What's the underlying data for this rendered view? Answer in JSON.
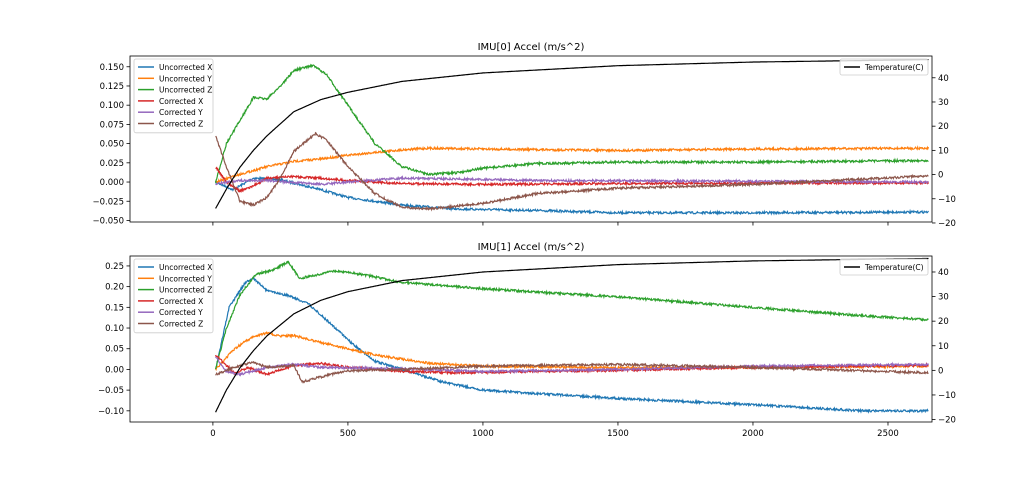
{
  "chart_data": [
    {
      "type": "line",
      "title": "IMU[0] Accel (m/s^2)",
      "xlabel": "",
      "ylabel": "",
      "y2label": "",
      "xlim": [
        -307,
        2663
      ],
      "ylim": [
        -0.052,
        0.164
      ],
      "y2lim": [
        -19.6,
        49
      ],
      "xticks": [
        0,
        500,
        1000,
        1500,
        2000,
        2500
      ],
      "show_xtick_labels": false,
      "yticks": [
        "-0.050",
        "-0.025",
        "0.000",
        "0.025",
        "0.050",
        "0.075",
        "0.100",
        "0.125",
        "0.150"
      ],
      "y2ticks": [
        "-20",
        "-10",
        "0",
        "10",
        "20",
        "30",
        "40"
      ],
      "grid": false,
      "legend_placement": "top-left",
      "legend2_placement": "top-right",
      "series": [
        {
          "name": "Uncorrected X",
          "color": "#1f77b4",
          "points": [
            [
              10,
              0
            ],
            [
              75,
              -0.01
            ],
            [
              150,
              0.005
            ],
            [
              250,
              0.003
            ],
            [
              400,
              -0.01
            ],
            [
              500,
              -0.02
            ],
            [
              700,
              -0.03
            ],
            [
              900,
              -0.035
            ],
            [
              1200,
              -0.037
            ],
            [
              1500,
              -0.04
            ],
            [
              2000,
              -0.04
            ],
            [
              2650,
              -0.039
            ]
          ]
        },
        {
          "name": "Uncorrected Y",
          "color": "#ff7f0e",
          "points": [
            [
              10,
              0
            ],
            [
              100,
              0.01
            ],
            [
              200,
              0.02
            ],
            [
              300,
              0.027
            ],
            [
              400,
              0.03
            ],
            [
              500,
              0.035
            ],
            [
              700,
              0.042
            ],
            [
              800,
              0.044
            ],
            [
              1000,
              0.043
            ],
            [
              1500,
              0.041
            ],
            [
              2000,
              0.043
            ],
            [
              2650,
              0.044
            ]
          ]
        },
        {
          "name": "Uncorrected Z",
          "color": "#2ca02c",
          "points": [
            [
              10,
              0
            ],
            [
              50,
              0.05
            ],
            [
              100,
              0.08
            ],
            [
              150,
              0.11
            ],
            [
              200,
              0.108
            ],
            [
              250,
              0.125
            ],
            [
              300,
              0.145
            ],
            [
              370,
              0.152
            ],
            [
              420,
              0.14
            ],
            [
              500,
              0.1
            ],
            [
              600,
              0.05
            ],
            [
              700,
              0.02
            ],
            [
              800,
              0.01
            ],
            [
              900,
              0.012
            ],
            [
              1000,
              0.018
            ],
            [
              1200,
              0.024
            ],
            [
              1500,
              0.026
            ],
            [
              2000,
              0.026
            ],
            [
              2650,
              0.028
            ]
          ]
        },
        {
          "name": "Corrected X",
          "color": "#d62728",
          "points": [
            [
              10,
              0.02
            ],
            [
              50,
              0
            ],
            [
              100,
              -0.012
            ],
            [
              150,
              -0.005
            ],
            [
              200,
              0.005
            ],
            [
              300,
              0.007
            ],
            [
              400,
              0.005
            ],
            [
              500,
              0.002
            ],
            [
              700,
              -0.002
            ],
            [
              1000,
              -0.003
            ],
            [
              1500,
              -0.002
            ],
            [
              2650,
              -0.001
            ]
          ]
        },
        {
          "name": "Corrected Y",
          "color": "#9467bd",
          "points": [
            [
              10,
              -0.002
            ],
            [
              100,
              0.002
            ],
            [
              200,
              0.002
            ],
            [
              400,
              -0.003
            ],
            [
              500,
              0
            ],
            [
              700,
              0.005
            ],
            [
              900,
              0.004
            ],
            [
              1200,
              0.002
            ],
            [
              2000,
              0.001
            ],
            [
              2650,
              0
            ]
          ]
        },
        {
          "name": "Corrected Z",
          "color": "#8c564b",
          "points": [
            [
              10,
              0.06
            ],
            [
              50,
              0.02
            ],
            [
              100,
              -0.025
            ],
            [
              150,
              -0.03
            ],
            [
              200,
              -0.02
            ],
            [
              250,
              0.005
            ],
            [
              300,
              0.04
            ],
            [
              380,
              0.063
            ],
            [
              420,
              0.055
            ],
            [
              500,
              0.02
            ],
            [
              600,
              -0.015
            ],
            [
              700,
              -0.033
            ],
            [
              800,
              -0.035
            ],
            [
              1000,
              -0.028
            ],
            [
              1200,
              -0.015
            ],
            [
              1500,
              -0.008
            ],
            [
              2000,
              -0.003
            ],
            [
              2650,
              0.008
            ]
          ]
        }
      ],
      "series2": [
        {
          "name": "Temperature(C)",
          "color": "#000000",
          "points": [
            [
              10,
              -14
            ],
            [
              50,
              -6
            ],
            [
              100,
              3
            ],
            [
              150,
              10
            ],
            [
              200,
              16
            ],
            [
              300,
              26
            ],
            [
              400,
              31
            ],
            [
              500,
              34
            ],
            [
              700,
              38.5
            ],
            [
              1000,
              42
            ],
            [
              1500,
              45
            ],
            [
              2000,
              46.5
            ],
            [
              2650,
              47.5
            ]
          ]
        }
      ]
    },
    {
      "type": "line",
      "title": "IMU[1] Accel (m/s^2)",
      "xlabel": "",
      "ylabel": "",
      "y2label": "",
      "xlim": [
        -307,
        2663
      ],
      "ylim": [
        -0.127,
        0.274
      ],
      "y2lim": [
        -21,
        46.5
      ],
      "xticks": [
        0,
        500,
        1000,
        1500,
        2000,
        2500
      ],
      "show_xtick_labels": true,
      "yticks": [
        "-0.10",
        "-0.05",
        "0.00",
        "0.05",
        "0.10",
        "0.15",
        "0.20",
        "0.25"
      ],
      "y2ticks": [
        "-20",
        "-10",
        "0",
        "10",
        "20",
        "30",
        "40"
      ],
      "grid": false,
      "legend_placement": "top-left",
      "legend2_placement": "top-right",
      "series": [
        {
          "name": "Uncorrected X",
          "color": "#1f77b4",
          "points": [
            [
              10,
              0
            ],
            [
              60,
              0.15
            ],
            [
              120,
              0.21
            ],
            [
              150,
              0.22
            ],
            [
              200,
              0.19
            ],
            [
              280,
              0.178
            ],
            [
              350,
              0.16
            ],
            [
              420,
              0.12
            ],
            [
              520,
              0.06
            ],
            [
              600,
              0.02
            ],
            [
              700,
              0
            ],
            [
              850,
              -0.03
            ],
            [
              1000,
              -0.05
            ],
            [
              1500,
              -0.07
            ],
            [
              2000,
              -0.085
            ],
            [
              2400,
              -0.1
            ],
            [
              2650,
              -0.1
            ]
          ]
        },
        {
          "name": "Uncorrected Y",
          "color": "#ff7f0e",
          "points": [
            [
              10,
              0
            ],
            [
              80,
              0.05
            ],
            [
              150,
              0.08
            ],
            [
              200,
              0.088
            ],
            [
              250,
              0.08
            ],
            [
              300,
              0.082
            ],
            [
              400,
              0.065
            ],
            [
              500,
              0.05
            ],
            [
              600,
              0.035
            ],
            [
              700,
              0.025
            ],
            [
              800,
              0.015
            ],
            [
              1000,
              0.008
            ],
            [
              1500,
              0.004
            ],
            [
              2000,
              0.005
            ],
            [
              2650,
              0.008
            ]
          ]
        },
        {
          "name": "Uncorrected Z",
          "color": "#2ca02c",
          "points": [
            [
              10,
              0
            ],
            [
              50,
              0.1
            ],
            [
              100,
              0.18
            ],
            [
              160,
              0.23
            ],
            [
              220,
              0.24
            ],
            [
              280,
              0.26
            ],
            [
              320,
              0.22
            ],
            [
              400,
              0.23
            ],
            [
              450,
              0.238
            ],
            [
              550,
              0.23
            ],
            [
              700,
              0.21
            ],
            [
              1000,
              0.195
            ],
            [
              1500,
              0.175
            ],
            [
              2000,
              0.15
            ],
            [
              2400,
              0.13
            ],
            [
              2650,
              0.12
            ]
          ]
        },
        {
          "name": "Corrected X",
          "color": "#d62728",
          "points": [
            [
              10,
              0.035
            ],
            [
              50,
              0.01
            ],
            [
              80,
              -0.01
            ],
            [
              130,
              0.005
            ],
            [
              200,
              -0.012
            ],
            [
              300,
              0.01
            ],
            [
              400,
              0.015
            ],
            [
              500,
              0.005
            ],
            [
              700,
              -0.005
            ],
            [
              900,
              -0.008
            ],
            [
              1500,
              -0.002
            ],
            [
              2000,
              0.005
            ],
            [
              2650,
              0.01
            ]
          ]
        },
        {
          "name": "Corrected Y",
          "color": "#9467bd",
          "points": [
            [
              10,
              0.03
            ],
            [
              50,
              -0.005
            ],
            [
              100,
              -0.012
            ],
            [
              200,
              0.005
            ],
            [
              300,
              0.012
            ],
            [
              400,
              0.005
            ],
            [
              700,
              0.002
            ],
            [
              1000,
              -0.005
            ],
            [
              1500,
              0
            ],
            [
              2000,
              0.008
            ],
            [
              2650,
              0.012
            ]
          ]
        },
        {
          "name": "Corrected Z",
          "color": "#8c564b",
          "points": [
            [
              10,
              -0.012
            ],
            [
              80,
              0.005
            ],
            [
              150,
              0.018
            ],
            [
              200,
              0.005
            ],
            [
              300,
              0.01
            ],
            [
              330,
              -0.03
            ],
            [
              450,
              -0.01
            ],
            [
              500,
              -0.003
            ],
            [
              700,
              0
            ],
            [
              1000,
              0.008
            ],
            [
              1500,
              0.012
            ],
            [
              2000,
              0.005
            ],
            [
              2650,
              -0.008
            ]
          ]
        }
      ],
      "series2": [
        {
          "name": "Temperature(C)",
          "color": "#000000",
          "points": [
            [
              10,
              -17
            ],
            [
              50,
              -8
            ],
            [
              100,
              1
            ],
            [
              150,
              8
            ],
            [
              200,
              14
            ],
            [
              300,
              23
            ],
            [
              400,
              28.5
            ],
            [
              500,
              32
            ],
            [
              700,
              36.5
            ],
            [
              1000,
              40
            ],
            [
              1500,
              43
            ],
            [
              2000,
              44.5
            ],
            [
              2650,
              45.5
            ]
          ]
        }
      ]
    }
  ]
}
